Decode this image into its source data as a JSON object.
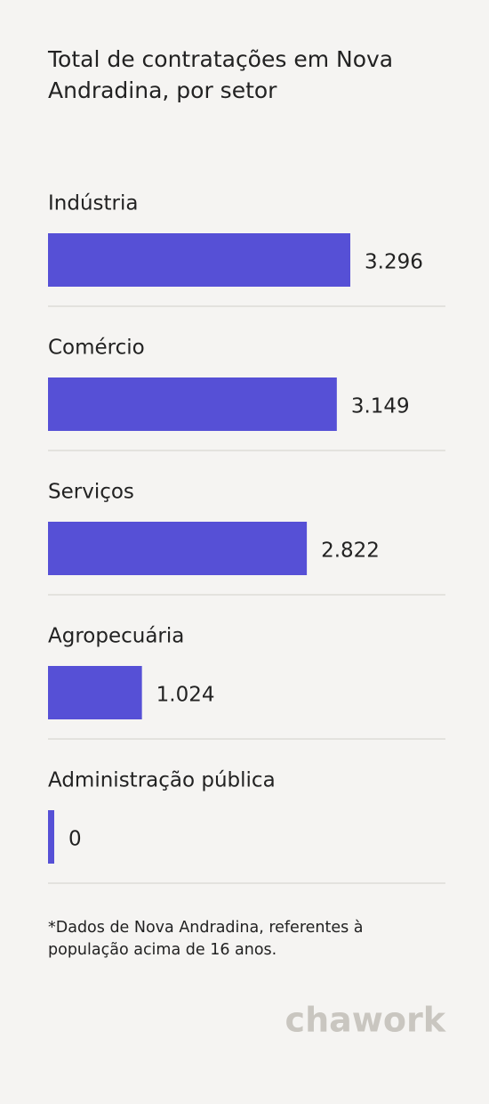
{
  "chart_data": {
    "type": "bar",
    "orientation": "horizontal",
    "title": "Total de contratações em Nova Andradina, por setor",
    "categories": [
      "Indústria",
      "Comércio",
      "Serviços",
      "Agropecuária",
      "Administração pública"
    ],
    "values": [
      3296,
      3149,
      2822,
      1024,
      0
    ],
    "value_labels": [
      "3.296",
      "3.149",
      "2.822",
      "1.024",
      "0"
    ],
    "color": "#5650d6",
    "footnote": "*Dados de Nova Andradina, referentes à população acima de 16 anos.",
    "brand": "chawork"
  }
}
